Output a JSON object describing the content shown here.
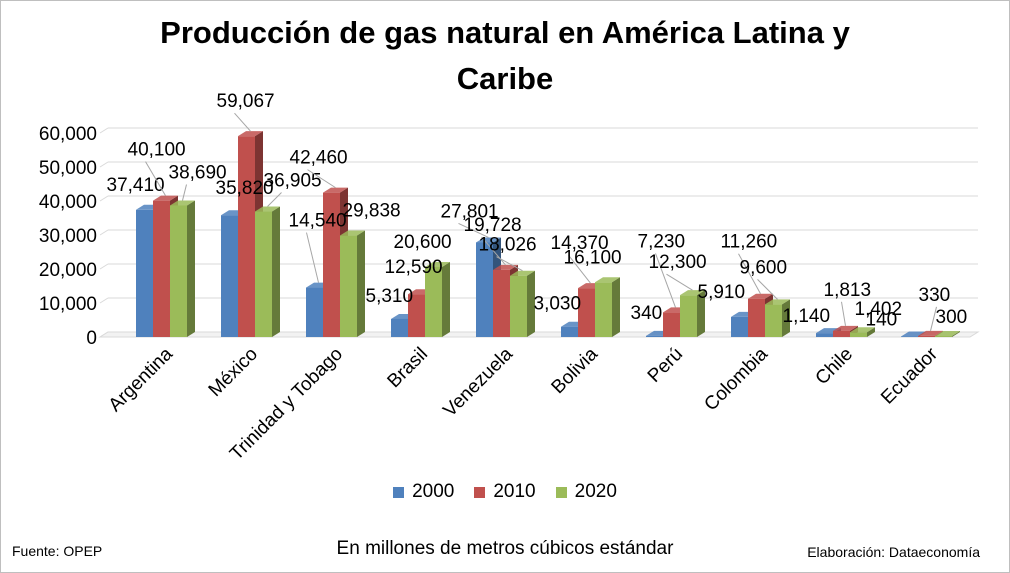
{
  "title_line1": "Producción de gas natural en América Latina y",
  "title_line2": "Caribe",
  "chart_data": {
    "type": "bar",
    "title": "Producción de gas natural en América Latina y Caribe",
    "categories": [
      "Argentina",
      "México",
      "Trinidad y Tobago",
      "Brasil",
      "Venezuela",
      "Bolivia",
      "Perú",
      "Colombia",
      "Chile",
      "Ecuador"
    ],
    "series": [
      {
        "name": "2000",
        "color": "#4f81bd",
        "values": [
          37410,
          35820,
          14540,
          5310,
          27801,
          3030,
          340,
          5910,
          1140,
          140
        ]
      },
      {
        "name": "2010",
        "color": "#c0504d",
        "values": [
          40100,
          59067,
          42460,
          12590,
          19728,
          14370,
          7230,
          11260,
          1813,
          330
        ]
      },
      {
        "name": "2020",
        "color": "#9bbb59",
        "values": [
          38690,
          36905,
          29838,
          20600,
          18026,
          16100,
          12300,
          9600,
          1402,
          300
        ]
      }
    ],
    "labels": [
      [
        "37,410",
        "35,820",
        "14,540",
        "5,310",
        "27,801",
        "3,030",
        "340",
        "5,910",
        "1,140",
        "140"
      ],
      [
        "40,100",
        "59,067",
        "42,460",
        "12,590",
        "19,728",
        "14,370",
        "7,230",
        "11,260",
        "1,813",
        "330"
      ],
      [
        "38,690",
        "36,905",
        "29,838",
        "20,600",
        "18,026",
        "16,100",
        "12,300",
        "9,600",
        "1,402",
        "300"
      ]
    ],
    "yticks": [
      0,
      10000,
      20000,
      30000,
      40000,
      50000,
      60000
    ],
    "ytick_labels": [
      "0",
      "10,000",
      "20,000",
      "30,000",
      "40,000",
      "50,000",
      "60,000"
    ],
    "ylim": [
      0,
      60000
    ],
    "grid": true,
    "legend_position": "bottom"
  },
  "units_note": "En millones de metros cúbicos estándar",
  "source_note": "Fuente: OPEP",
  "credit_note": "Elaboración: Dataeconomía"
}
